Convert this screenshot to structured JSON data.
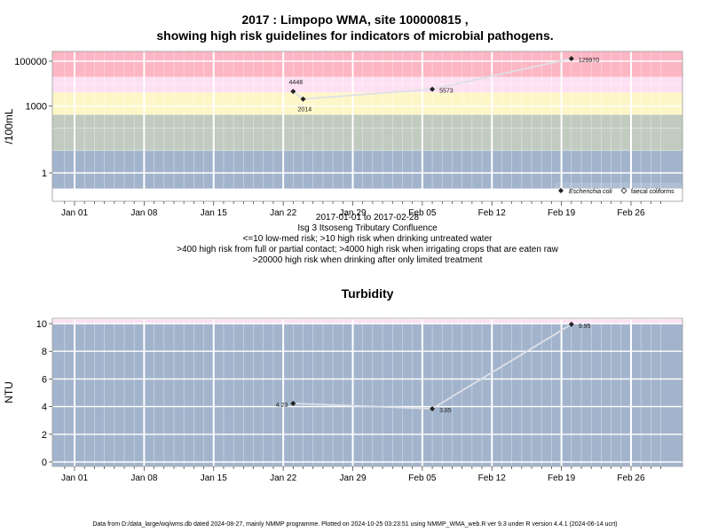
{
  "top": {
    "title_line1": "2017 : Limpopo WMA, site 100000815 ,",
    "title_line2": "showing high risk guidelines for indicators of microbial pathogens.",
    "captions": [
      "2017-01-01 to 2017-02-28",
      "Isg 3 Itsoseng Tributary Confluence",
      "<=10 low-med risk; >10 high risk when drinking untreated water",
      ">400 high risk from full or partial contact; >4000 high risk when irrigating crops that are eaten raw",
      ">20000 high risk when drinking after only limited treatment"
    ]
  },
  "colors": {
    "band_low": "#a2b4cc",
    "band_grey": "#c2cbc0",
    "band_yellow": "#fdf7c8",
    "band_pink_light": "#fde0f2",
    "band_pink": "#fdb6c3",
    "line": "#dde0e8",
    "marker": "#222222"
  },
  "chart_data": [
    {
      "type": "scatter",
      "ylabel": "/100mL",
      "yscale": "log",
      "ylim": [
        0.2,
        300000
      ],
      "x_ticks": [
        "Jan 01",
        "Jan 08",
        "Jan 15",
        "Jan 22",
        "Jan 29",
        "Feb 05",
        "Feb 12",
        "Feb 19",
        "Feb 26"
      ],
      "y_ticks": [
        {
          "value": 1,
          "label": "1"
        },
        {
          "value": 1000,
          "label": "1000"
        },
        {
          "value": 100000,
          "label": "100000"
        }
      ],
      "bands": [
        {
          "from": 0.2,
          "to": 10,
          "color": "band_low"
        },
        {
          "from": 10,
          "to": 400,
          "color": "band_grey"
        },
        {
          "from": 400,
          "to": 4000,
          "color": "band_yellow"
        },
        {
          "from": 4000,
          "to": 20000,
          "color": "band_pink_light"
        },
        {
          "from": 20000,
          "to": 300000,
          "color": "band_pink"
        }
      ],
      "legend": [
        "Escherichia coli",
        "faecal coliforms"
      ],
      "legend_position": "bottom-right",
      "series": [
        {
          "name": "Escherichia coli",
          "points": [
            {
              "x": "2017-01-23",
              "y": 4448,
              "label": "4448"
            },
            {
              "x": "2017-01-24",
              "y": 2014,
              "label": "2014"
            },
            {
              "x": "2017-02-06",
              "y": 5573,
              "label": "5573"
            },
            {
              "x": "2017-02-20",
              "y": 129970,
              "label": "129970"
            }
          ]
        }
      ]
    },
    {
      "type": "line",
      "title": "Turbidity",
      "ylabel": "NTU",
      "ylim": [
        -0.3,
        10.3
      ],
      "x_ticks": [
        "Jan 01",
        "Jan 08",
        "Jan 15",
        "Jan 22",
        "Jan 29",
        "Feb 05",
        "Feb 12",
        "Feb 19",
        "Feb 26"
      ],
      "y_ticks": [
        {
          "value": 0,
          "label": "0"
        },
        {
          "value": 2,
          "label": "2"
        },
        {
          "value": 4,
          "label": "4"
        },
        {
          "value": 6,
          "label": "6"
        },
        {
          "value": 8,
          "label": "8"
        },
        {
          "value": 10,
          "label": "10"
        }
      ],
      "bands": [
        {
          "from": -0.3,
          "to": 10,
          "color": "band_low"
        },
        {
          "from": 10,
          "to": 10.3,
          "color": "band_pink_light"
        }
      ],
      "series": [
        {
          "name": "",
          "points": [
            {
              "x": "2017-01-23",
              "y": 4.23,
              "label": "4.23"
            },
            {
              "x": "2017-02-06",
              "y": 3.85,
              "label": "3.85"
            },
            {
              "x": "2017-02-20",
              "y": 9.95,
              "label": "9.95"
            }
          ]
        }
      ]
    }
  ],
  "footer": "Data from D:/data_large/wq/wms.db dated 2024-08-27, mainly NMMP programme. Plotted on 2024-10-25 03:23:51 using NMMP_WMA_web.R ver 9.3 under R version 4.4.1 (2024-06-14 ucrt)"
}
